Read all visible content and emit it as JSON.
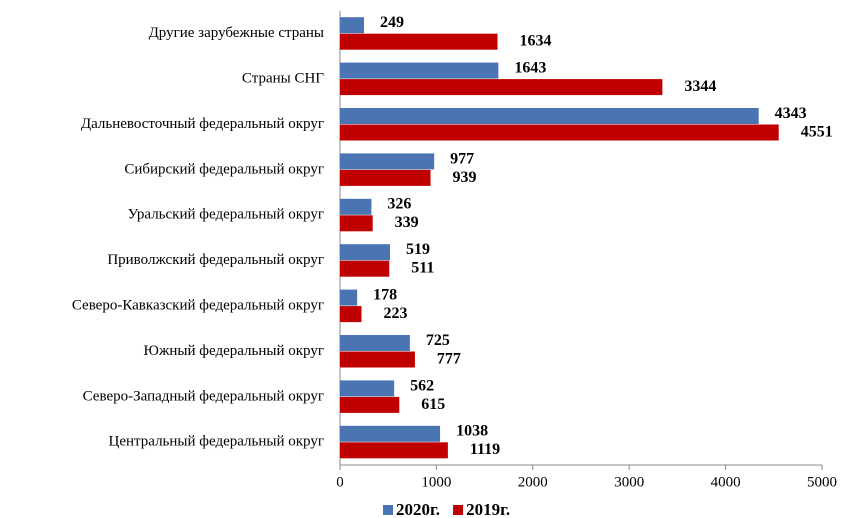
{
  "chart_data": {
    "type": "barh",
    "categories": [
      "Другие зарубежные страны",
      "Страны СНГ",
      "Дальневосточный федеральный округ",
      "Сибирский федеральный округ",
      "Уральский федеральный округ",
      "Приволжский федеральный округ",
      "Северо-Кавказский федеральный округ",
      "Южный федеральный округ",
      "Северо-Западный федеральный округ",
      "Центральный федеральный округ"
    ],
    "series": [
      {
        "name": "2020г.",
        "color": "#4a74b2",
        "values": [
          249,
          1643,
          4343,
          977,
          326,
          519,
          178,
          725,
          562,
          1038
        ]
      },
      {
        "name": "2019г.",
        "color": "#c00000",
        "values": [
          1634,
          3344,
          4551,
          939,
          339,
          511,
          223,
          777,
          615,
          1119
        ]
      }
    ],
    "xlim": [
      0,
      5000
    ],
    "xticks": [
      0,
      1000,
      2000,
      3000,
      4000,
      5000
    ],
    "legend": "bottom"
  }
}
